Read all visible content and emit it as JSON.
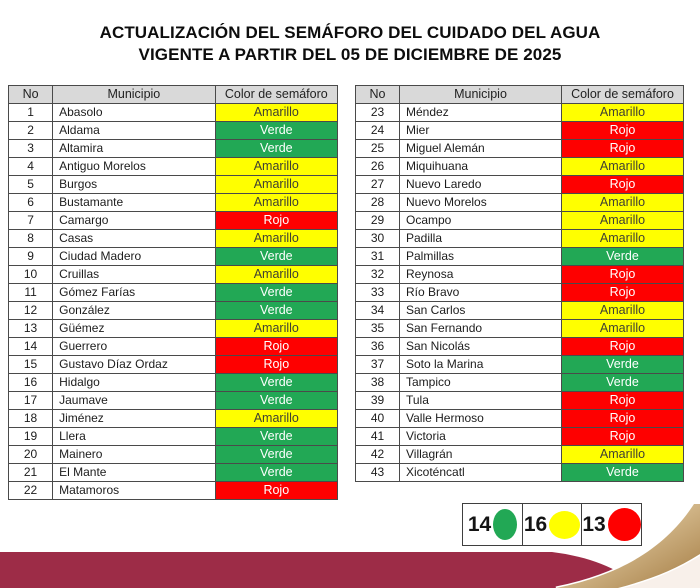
{
  "title": {
    "line1": "ACTUALIZACIÓN DEL SEMÁFORO DEL CUIDADO DEL AGUA",
    "line2": "VIGENTE A PARTIR DEL 05 DE DICIEMBRE DE 2025"
  },
  "table": {
    "headers": {
      "no": "No",
      "municipio": "Municipio",
      "semaforo": "Color de semáforo"
    }
  },
  "status_colors": {
    "Amarillo": {
      "bg": "#ffff00",
      "fg": "#3f3f33"
    },
    "Verde": {
      "bg": "#22a855",
      "fg": "#ffffff"
    },
    "Rojo": {
      "bg": "#fe0000",
      "fg": "#ffffff"
    }
  },
  "left_rows": [
    {
      "no": "1",
      "municipio": "Abasolo",
      "estado": "Amarillo"
    },
    {
      "no": "2",
      "municipio": "Aldama",
      "estado": "Verde"
    },
    {
      "no": "3",
      "municipio": "Altamira",
      "estado": "Verde"
    },
    {
      "no": "4",
      "municipio": "Antiguo Morelos",
      "estado": "Amarillo"
    },
    {
      "no": "5",
      "municipio": "Burgos",
      "estado": "Amarillo"
    },
    {
      "no": "6",
      "municipio": "Bustamante",
      "estado": "Amarillo"
    },
    {
      "no": "7",
      "municipio": "Camargo",
      "estado": "Rojo"
    },
    {
      "no": "8",
      "municipio": "Casas",
      "estado": "Amarillo"
    },
    {
      "no": "9",
      "municipio": "Ciudad Madero",
      "estado": "Verde"
    },
    {
      "no": "10",
      "municipio": "Cruillas",
      "estado": "Amarillo"
    },
    {
      "no": "11",
      "municipio": "Gómez Farías",
      "estado": "Verde"
    },
    {
      "no": "12",
      "municipio": "González",
      "estado": "Verde"
    },
    {
      "no": "13",
      "municipio": "Güémez",
      "estado": "Amarillo"
    },
    {
      "no": "14",
      "municipio": "Guerrero",
      "estado": "Rojo"
    },
    {
      "no": "15",
      "municipio": "Gustavo Díaz Ordaz",
      "estado": "Rojo"
    },
    {
      "no": "16",
      "municipio": "Hidalgo",
      "estado": "Verde"
    },
    {
      "no": "17",
      "municipio": "Jaumave",
      "estado": "Verde"
    },
    {
      "no": "18",
      "municipio": "Jiménez",
      "estado": "Amarillo"
    },
    {
      "no": "19",
      "municipio": "Llera",
      "estado": "Verde"
    },
    {
      "no": "20",
      "municipio": "Mainero",
      "estado": "Verde"
    },
    {
      "no": "21",
      "municipio": "El Mante",
      "estado": "Verde"
    },
    {
      "no": "22",
      "municipio": "Matamoros",
      "estado": "Rojo"
    }
  ],
  "right_rows": [
    {
      "no": "23",
      "municipio": "Méndez",
      "estado": "Amarillo"
    },
    {
      "no": "24",
      "municipio": "Mier",
      "estado": "Rojo"
    },
    {
      "no": "25",
      "municipio": "Miguel Alemán",
      "estado": "Rojo"
    },
    {
      "no": "26",
      "municipio": "Miquihuana",
      "estado": "Amarillo"
    },
    {
      "no": "27",
      "municipio": "Nuevo Laredo",
      "estado": "Rojo"
    },
    {
      "no": "28",
      "municipio": "Nuevo Morelos",
      "estado": "Amarillo"
    },
    {
      "no": "29",
      "municipio": "Ocampo",
      "estado": "Amarillo"
    },
    {
      "no": "30",
      "municipio": "Padilla",
      "estado": "Amarillo"
    },
    {
      "no": "31",
      "municipio": "Palmillas",
      "estado": "Verde"
    },
    {
      "no": "32",
      "municipio": "Reynosa",
      "estado": "Rojo"
    },
    {
      "no": "33",
      "municipio": "Río Bravo",
      "estado": "Rojo"
    },
    {
      "no": "34",
      "municipio": "San Carlos",
      "estado": "Amarillo"
    },
    {
      "no": "35",
      "municipio": "San Fernando",
      "estado": "Amarillo"
    },
    {
      "no": "36",
      "municipio": "San Nicolás",
      "estado": "Rojo"
    },
    {
      "no": "37",
      "municipio": "Soto la Marina",
      "estado": "Verde"
    },
    {
      "no": "38",
      "municipio": "Tampico",
      "estado": "Verde"
    },
    {
      "no": "39",
      "municipio": "Tula",
      "estado": "Rojo"
    },
    {
      "no": "40",
      "municipio": "Valle Hermoso",
      "estado": "Rojo"
    },
    {
      "no": "41",
      "municipio": "Victoria",
      "estado": "Rojo"
    },
    {
      "no": "42",
      "municipio": "Villagrán",
      "estado": "Amarillo"
    },
    {
      "no": "43",
      "municipio": "Xicoténcatl",
      "estado": "Verde"
    }
  ],
  "legend": {
    "items": [
      {
        "count": "14",
        "status": "Verde",
        "color": "#22a855"
      },
      {
        "count": "16",
        "status": "Amarillo",
        "color": "#ffff00"
      },
      {
        "count": "13",
        "status": "Rojo",
        "color": "#fe0000"
      }
    ]
  },
  "decoration": {
    "band_color": "#9d2c47",
    "ribbon_light": "#ecdfc2",
    "ribbon_mid": "#d0b486",
    "ribbon_dark": "#a47c43",
    "corner_color": "#f8f0ea"
  }
}
